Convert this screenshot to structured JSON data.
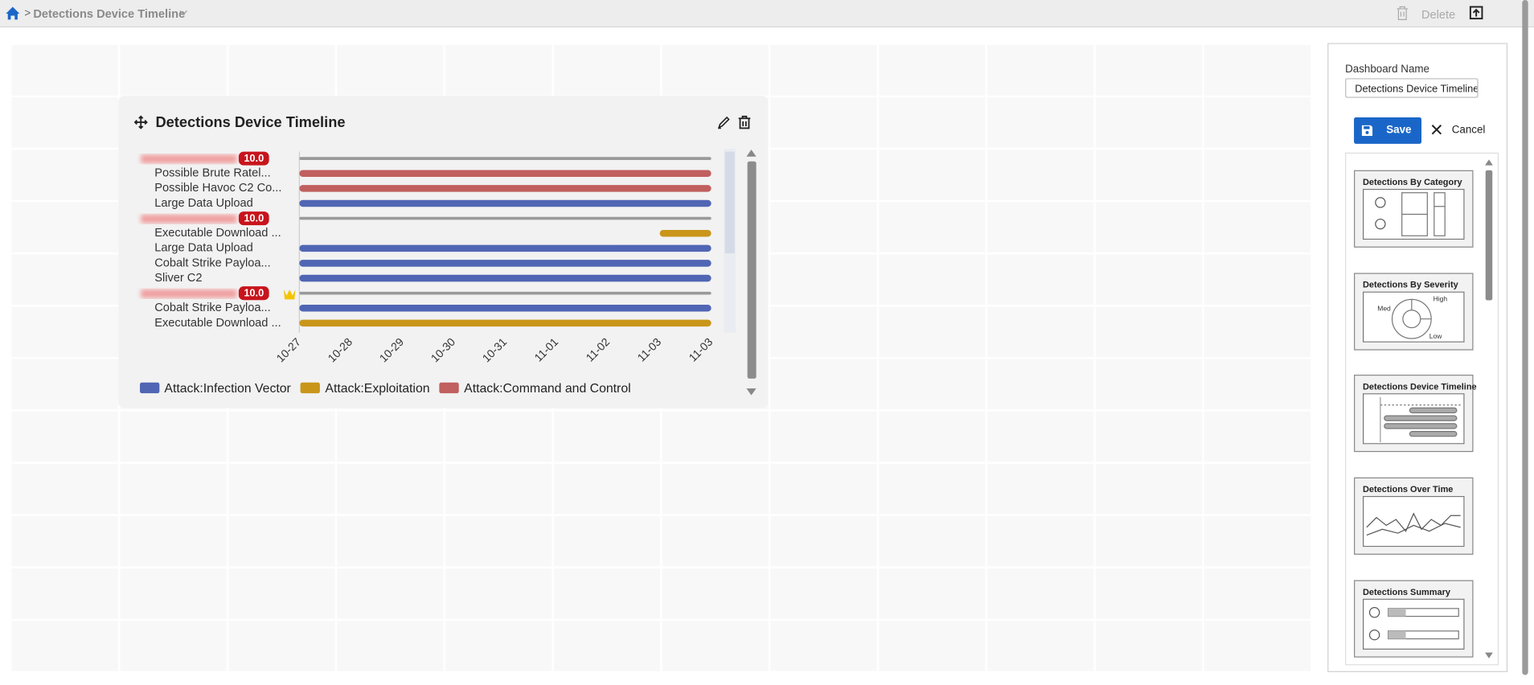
{
  "header": {
    "breadcrumb": "Detections Device Timeline",
    "delete": "Delete"
  },
  "widget": {
    "title": "Detections Device Timeline"
  },
  "chart_data": {
    "type": "timeline",
    "xlim": [
      0,
      8
    ],
    "xticks": [
      {
        "value": 0,
        "label": "10-27"
      },
      {
        "value": 1,
        "label": "10-28"
      },
      {
        "value": 2,
        "label": "10-29"
      },
      {
        "value": 3,
        "label": "10-30"
      },
      {
        "value": 4,
        "label": "10-31"
      },
      {
        "value": 5,
        "label": "11-01"
      },
      {
        "value": 6,
        "label": "11-02"
      },
      {
        "value": 7,
        "label": "11-03"
      },
      {
        "value": 8,
        "label": "11-03"
      }
    ],
    "device_color": "#9a9a9a",
    "devices": [
      {
        "score": "10.0",
        "start": 0,
        "end": 8,
        "detections": [
          {
            "label": "Possible Brute Ratel...",
            "color": "#c0605f",
            "start": 0,
            "end": 8
          },
          {
            "label": "Possible Havoc C2 Co...",
            "color": "#c0605f",
            "start": 0,
            "end": 8
          },
          {
            "label": "Large Data Upload",
            "color": "#5066b4",
            "start": 0,
            "end": 8
          }
        ]
      },
      {
        "score": "10.0",
        "start": 0,
        "end": 8,
        "detections": [
          {
            "label": "Executable Download ...",
            "color": "#c9961a",
            "start": 7,
            "end": 8
          },
          {
            "label": "Large Data Upload",
            "color": "#5066b4",
            "start": 0,
            "end": 8
          },
          {
            "label": "Cobalt Strike Payloa...",
            "color": "#5066b4",
            "start": 0,
            "end": 8
          },
          {
            "label": "Sliver C2",
            "color": "#5066b4",
            "start": 0,
            "end": 8
          }
        ]
      },
      {
        "score": "10.0",
        "start": 0,
        "end": 8,
        "detections": [
          {
            "label": "Cobalt Strike Payloa...",
            "color": "#5066b4",
            "start": 0,
            "end": 8
          },
          {
            "label": "Executable Download ...",
            "color": "#c9961a",
            "start": 0,
            "end": 8
          }
        ]
      }
    ],
    "series": [
      {
        "name": "Attack:Infection Vector",
        "color": "#5066b4"
      },
      {
        "name": "Attack:Exploitation",
        "color": "#c9961a"
      },
      {
        "name": "Attack:Command and Control",
        "color": "#c0605f"
      }
    ]
  },
  "sidebar": {
    "label": "Dashboard Name",
    "input": "Detections Device Timeline",
    "save": "Save",
    "cancel": "Cancel",
    "widgets": [
      {
        "title": "Detections By Category"
      },
      {
        "title": "Detections By Severity",
        "labels": [
          "High",
          "Med",
          "Low"
        ]
      },
      {
        "title": "Detections Device Timeline"
      },
      {
        "title": "Detections Over Time"
      },
      {
        "title": "Detections Summary"
      }
    ]
  }
}
